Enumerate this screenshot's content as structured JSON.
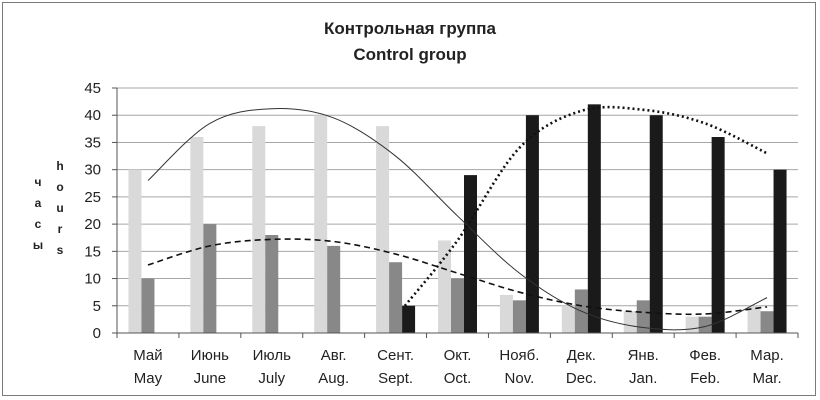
{
  "chart_data": {
    "type": "bar",
    "title": [
      "Контрольная группа",
      "Control group"
    ],
    "ylabel_ru": "часы",
    "ylabel_en": "hours",
    "ylim": [
      0,
      45
    ],
    "yticks": [
      0,
      5,
      10,
      15,
      20,
      25,
      30,
      35,
      40,
      45
    ],
    "grid": true,
    "legend": "none",
    "categories": [
      {
        "ru": "Май",
        "en": "May"
      },
      {
        "ru": "Июнь",
        "en": "June"
      },
      {
        "ru": "Июль",
        "en": "July"
      },
      {
        "ru": "Авг.",
        "en": "Aug."
      },
      {
        "ru": "Сент.",
        "en": "Sept."
      },
      {
        "ru": "Окт.",
        "en": "Oct."
      },
      {
        "ru": "Нояб.",
        "en": "Nov."
      },
      {
        "ru": "Дек.",
        "en": "Dec."
      },
      {
        "ru": "Янв.",
        "en": "Jan."
      },
      {
        "ru": "Фев.",
        "en": "Feb."
      },
      {
        "ru": "Мар.",
        "en": "Mar."
      }
    ],
    "series": [
      {
        "color": "#d9d9d9",
        "values": [
          30,
          36,
          38,
          40,
          38,
          17,
          7,
          5,
          4,
          3,
          5
        ]
      },
      {
        "color": "#888888",
        "values": [
          10,
          20,
          18,
          16,
          13,
          10,
          6,
          8,
          6,
          3,
          4
        ]
      },
      {
        "color": "#1a1a1a",
        "values": [
          0,
          0,
          0,
          0,
          5,
          29,
          40,
          42,
          40,
          36,
          30
        ]
      }
    ],
    "trendlines": [
      {
        "style": "solid",
        "color": "#333333",
        "values": [
          28,
          38.5,
          41.2,
          39.5,
          32.5,
          21.5,
          11,
          4,
          1,
          1.2,
          6.5
        ]
      },
      {
        "style": "dashed",
        "color": "#111111",
        "values": [
          12.5,
          16,
          17.2,
          16.8,
          14.5,
          11,
          7.5,
          5,
          3.8,
          3.5,
          4.8
        ]
      },
      {
        "style": "dotted",
        "color": "#111111",
        "points": [
          [
            4.15,
            5
          ],
          [
            5,
            17
          ],
          [
            6,
            34
          ],
          [
            7,
            40.8
          ],
          [
            8,
            41
          ],
          [
            9,
            38.5
          ],
          [
            10,
            33
          ]
        ]
      }
    ]
  }
}
